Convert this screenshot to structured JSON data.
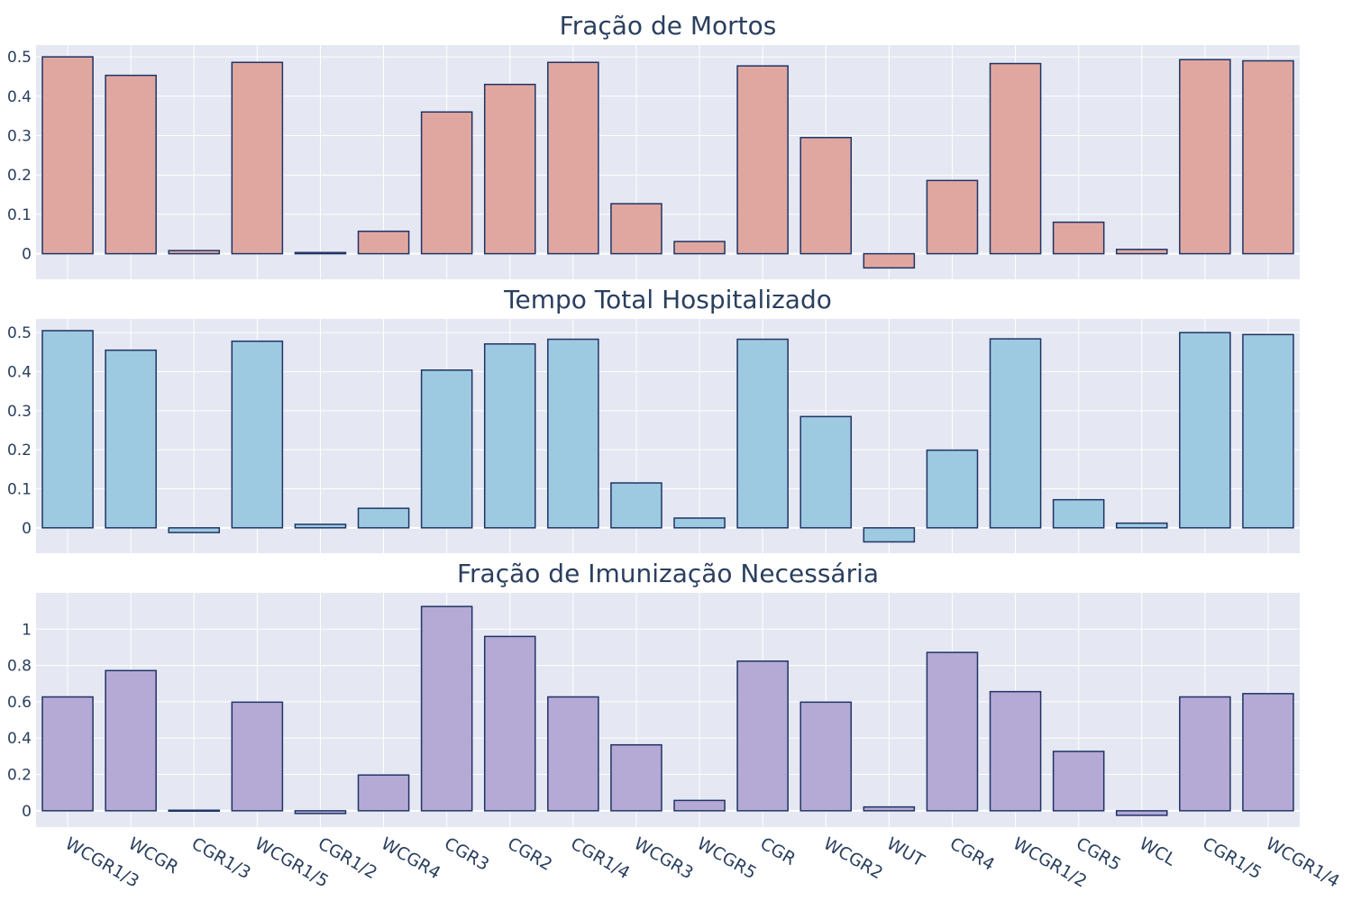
{
  "chart_data": [
    {
      "type": "bar",
      "title": "Fração de Mortos",
      "categories": [
        "WCGR1/3",
        "WCGR",
        "CGR1/3",
        "WCGR1/5",
        "CGR1/2",
        "WCGR4",
        "CGR3",
        "CGR2",
        "CGR1/4",
        "WCGR3",
        "WCGR5",
        "CGR",
        "WCGR2",
        "WUT",
        "CGR4",
        "WCGR1/2",
        "CGR5",
        "WCL",
        "CGR1/5",
        "WCGR1/4"
      ],
      "values": [
        0.5,
        0.453,
        0.008,
        0.486,
        0.003,
        0.057,
        0.36,
        0.43,
        0.486,
        0.127,
        0.031,
        0.477,
        0.295,
        -0.036,
        0.186,
        0.483,
        0.08,
        0.011,
        0.493,
        0.49
      ],
      "ylim": [
        -0.065,
        0.53
      ],
      "yticks": [
        0,
        0.1,
        0.2,
        0.3,
        0.4,
        0.5
      ],
      "ytick_labels": [
        "0",
        "0.1",
        "0.2",
        "0.3",
        "0.4",
        "0.5"
      ],
      "color": "#e0a7a1"
    },
    {
      "type": "bar",
      "title": "Tempo Total Hospitalizado",
      "categories": [
        "WCGR1/3",
        "WCGR",
        "CGR1/3",
        "WCGR1/5",
        "CGR1/2",
        "WCGR4",
        "CGR3",
        "CGR2",
        "CGR1/4",
        "WCGR3",
        "WCGR5",
        "CGR",
        "WCGR2",
        "WUT",
        "CGR4",
        "WCGR1/2",
        "CGR5",
        "WCL",
        "CGR1/5",
        "WCGR1/4"
      ],
      "values": [
        0.505,
        0.455,
        -0.012,
        0.478,
        0.009,
        0.05,
        0.404,
        0.471,
        0.483,
        0.115,
        0.025,
        0.483,
        0.285,
        -0.036,
        0.199,
        0.484,
        0.072,
        0.012,
        0.5,
        0.495
      ],
      "ylim": [
        -0.065,
        0.535
      ],
      "yticks": [
        0,
        0.1,
        0.2,
        0.3,
        0.4,
        0.5
      ],
      "ytick_labels": [
        "0",
        "0.1",
        "0.2",
        "0.3",
        "0.4",
        "0.5"
      ],
      "color": "#9ecae1"
    },
    {
      "type": "bar",
      "title": "Fração de Imunização Necessária",
      "categories": [
        "WCGR1/3",
        "WCGR",
        "CGR1/3",
        "WCGR1/5",
        "CGR1/2",
        "WCGR4",
        "CGR3",
        "CGR2",
        "CGR1/4",
        "WCGR3",
        "WCGR5",
        "CGR",
        "WCGR2",
        "WUT",
        "CGR4",
        "WCGR1/2",
        "CGR5",
        "WCL",
        "CGR1/5",
        "WCGR1/4"
      ],
      "values": [
        0.627,
        0.772,
        0.003,
        0.598,
        -0.015,
        0.197,
        1.125,
        0.96,
        0.627,
        0.363,
        0.057,
        0.824,
        0.598,
        0.021,
        0.872,
        0.656,
        0.327,
        -0.025,
        0.627,
        0.645
      ],
      "ylim": [
        -0.09,
        1.2
      ],
      "yticks": [
        0,
        0.2,
        0.4,
        0.6,
        0.8,
        1
      ],
      "ytick_labels": [
        "0",
        "0.2",
        "0.4",
        "0.6",
        "0.8",
        "1"
      ],
      "color": "#b5a9d5"
    }
  ],
  "style": {
    "plot_background": "#e5e8f2",
    "grid_color": "#ffffff",
    "bar_outline": "#1f3466",
    "text_color": "#2a3f5f"
  }
}
